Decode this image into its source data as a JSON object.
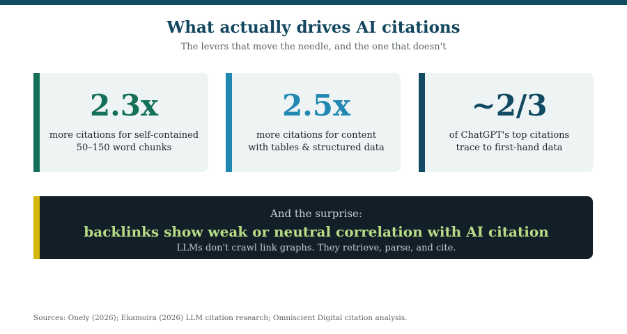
{
  "header": {
    "title": "What actually drives AI citations",
    "subtitle": "The levers that move the needle, and the one that doesn't"
  },
  "stats": [
    {
      "value": "2.3x",
      "lines": [
        "more citations for self-contained",
        "50–150 word chunks"
      ]
    },
    {
      "value": "2.5x",
      "lines": [
        "more citations for content",
        "with tables & structured data"
      ]
    },
    {
      "value": "~2/3",
      "lines": [
        "of ChatGPT's top citations",
        "trace to first-hand data"
      ]
    }
  ],
  "surprise": {
    "lead": "And the surprise:",
    "headline": "backlinks show weak or neutral correlation with AI citation",
    "note": "LLMs don't crawl link graphs. They retrieve, parse, and cite."
  },
  "sources": "Sources: Onely (2026); Ekamoira (2026) LLM citation research; Omniscient Digital citation analysis."
}
